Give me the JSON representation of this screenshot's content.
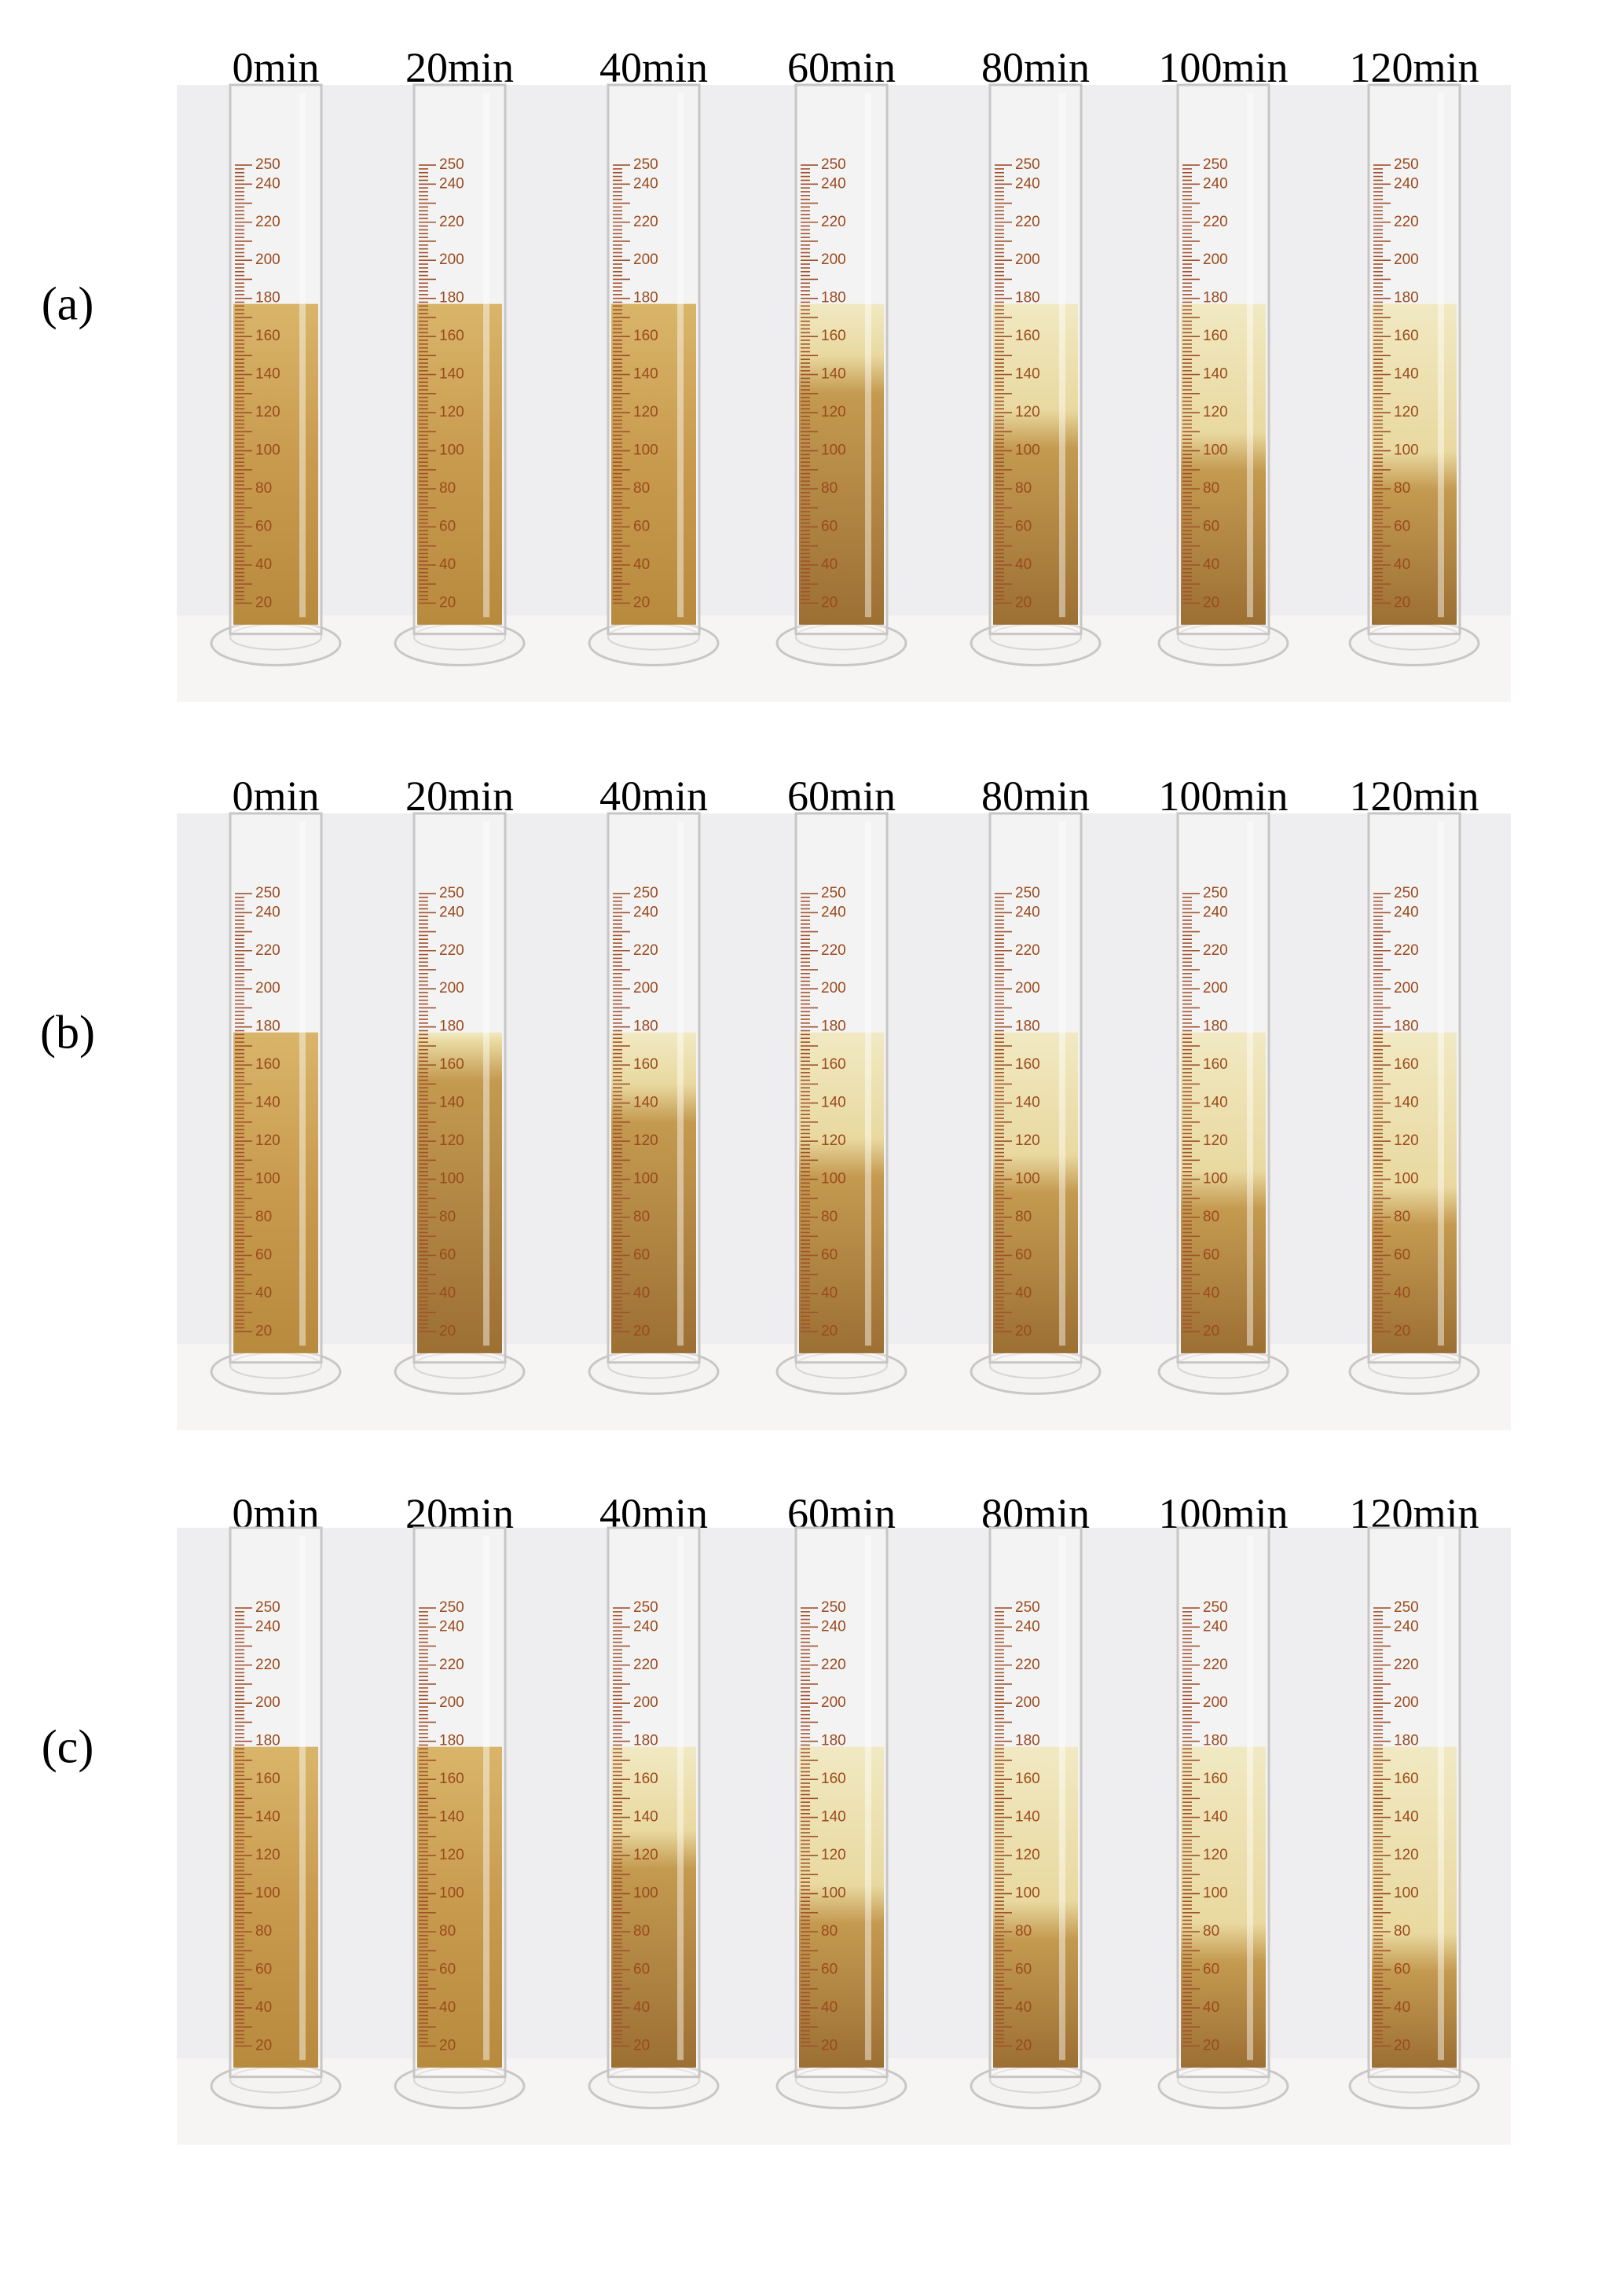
{
  "panels": [
    {
      "label": "(a)",
      "times": [
        "0min",
        "20min",
        "40min",
        "60min",
        "80min",
        "100min",
        "120min"
      ]
    },
    {
      "label": "(b)",
      "times": [
        "0min",
        "20min",
        "40min",
        "60min",
        "80min",
        "100min",
        "120min"
      ]
    },
    {
      "label": "(c)",
      "times": [
        "0min",
        "20min",
        "40min",
        "60min",
        "80min",
        "100min",
        "120min"
      ]
    }
  ],
  "cylinder_scale": [
    250,
    240,
    220,
    200,
    180,
    160,
    140,
    120,
    100,
    80,
    60,
    40,
    20
  ]
}
